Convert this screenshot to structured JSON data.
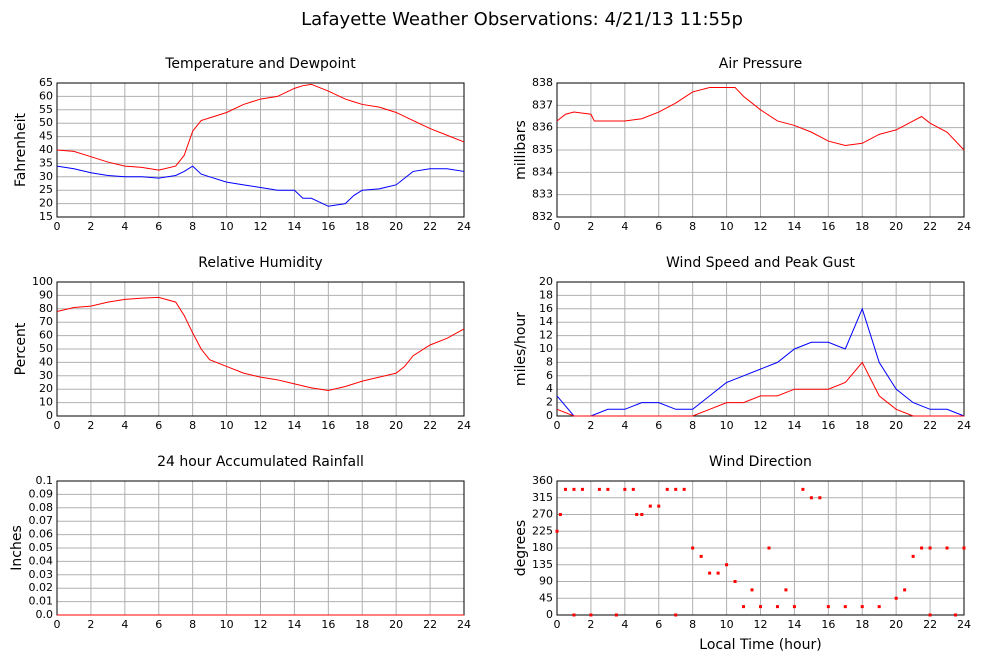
{
  "title": "Lafayette Weather Observations: 4/21/13 11:55p",
  "chart_data": [
    {
      "type": "line",
      "title": "Temperature and Dewpoint",
      "ylabel": "Fahrenheit",
      "x": [
        0,
        1,
        2,
        3,
        4,
        5,
        6,
        7,
        7.5,
        8,
        8.5,
        9,
        10,
        11,
        12,
        13,
        14,
        14.5,
        15,
        16,
        17,
        17.5,
        18,
        19,
        20,
        21,
        22,
        23,
        24
      ],
      "series": [
        {
          "color": "#ff0000",
          "values": [
            40,
            39.5,
            37.5,
            35.5,
            34,
            33.5,
            32.5,
            34,
            38,
            47,
            51,
            52,
            54,
            57,
            59,
            60,
            63,
            64,
            64.5,
            62,
            59,
            58,
            57,
            56,
            54,
            51,
            48,
            45.5,
            43
          ]
        },
        {
          "color": "#0000ff",
          "values": [
            34,
            33,
            31.5,
            30.5,
            30,
            30,
            29.5,
            30.5,
            32,
            34,
            31,
            30,
            28,
            27,
            26,
            25,
            25,
            22,
            22,
            19,
            20,
            23,
            25,
            25.5,
            27,
            32,
            33,
            33,
            32
          ]
        }
      ],
      "xlim": [
        0,
        24
      ],
      "xticks": [
        0,
        2,
        4,
        6,
        8,
        10,
        12,
        14,
        16,
        18,
        20,
        22,
        24
      ],
      "ylim": [
        15,
        65
      ],
      "yticks": [
        15,
        20,
        25,
        30,
        35,
        40,
        45,
        50,
        55,
        60,
        65
      ],
      "grid": true
    },
    {
      "type": "line",
      "title": "Air Pressure",
      "ylabel": "millibars",
      "x": [
        0,
        0.5,
        1,
        2,
        2.2,
        3,
        4,
        5,
        6,
        7,
        8,
        9,
        10,
        10.5,
        11,
        12,
        13,
        14,
        15,
        16,
        17,
        18,
        19,
        20,
        21,
        21.5,
        22,
        23,
        24
      ],
      "series": [
        {
          "color": "#ff0000",
          "values": [
            836.3,
            836.6,
            836.7,
            836.6,
            836.3,
            836.3,
            836.3,
            836.4,
            836.7,
            837.1,
            837.6,
            837.8,
            837.8,
            837.8,
            837.4,
            836.8,
            836.3,
            836.1,
            835.8,
            835.4,
            835.2,
            835.3,
            835.7,
            835.9,
            836.3,
            836.5,
            836.2,
            835.8,
            835
          ]
        }
      ],
      "xlim": [
        0,
        24
      ],
      "xticks": [
        0,
        2,
        4,
        6,
        8,
        10,
        12,
        14,
        16,
        18,
        20,
        22,
        24
      ],
      "ylim": [
        832,
        838
      ],
      "yticks": [
        832,
        833,
        834,
        835,
        836,
        837,
        838
      ],
      "grid": true
    },
    {
      "type": "line",
      "title": "Relative Humidity",
      "ylabel": "Percent",
      "x": [
        0,
        1,
        2,
        3,
        4,
        5,
        6,
        7,
        7.5,
        8,
        8.5,
        9,
        10,
        11,
        12,
        13,
        14,
        15,
        16,
        17,
        18,
        19,
        20,
        20.5,
        21,
        22,
        23,
        24
      ],
      "series": [
        {
          "color": "#ff0000",
          "values": [
            78,
            81,
            82,
            85,
            87,
            88,
            88.5,
            85,
            75,
            62,
            50,
            42,
            37,
            32,
            29,
            27,
            24,
            21,
            19,
            22,
            26,
            29,
            32,
            37,
            45,
            53,
            58,
            65
          ]
        }
      ],
      "xlim": [
        0,
        24
      ],
      "xticks": [
        0,
        2,
        4,
        6,
        8,
        10,
        12,
        14,
        16,
        18,
        20,
        22,
        24
      ],
      "ylim": [
        0,
        100
      ],
      "yticks": [
        0,
        10,
        20,
        30,
        40,
        50,
        60,
        70,
        80,
        90,
        100
      ],
      "grid": true
    },
    {
      "type": "line",
      "title": "Wind Speed and Peak Gust",
      "ylabel": "miles/hour",
      "x": [
        0,
        1,
        2,
        3,
        4,
        5,
        6,
        7,
        8,
        9,
        10,
        11,
        12,
        13,
        14,
        15,
        16,
        17,
        18,
        19,
        20,
        21,
        22,
        23,
        24
      ],
      "series": [
        {
          "color": "#0000ff",
          "values": [
            3,
            0,
            0,
            1,
            1,
            2,
            2,
            1,
            1,
            3,
            5,
            6,
            7,
            8,
            10,
            11,
            11,
            10,
            16,
            8,
            4,
            2,
            1,
            1,
            0
          ]
        },
        {
          "color": "#ff0000",
          "values": [
            1,
            0,
            0,
            0,
            0,
            0,
            0,
            0,
            0,
            1,
            2,
            2,
            3,
            3,
            4,
            4,
            4,
            5,
            8,
            3,
            1,
            0,
            0,
            0,
            0
          ]
        }
      ],
      "xlim": [
        0,
        24
      ],
      "xticks": [
        0,
        2,
        4,
        6,
        8,
        10,
        12,
        14,
        16,
        18,
        20,
        22,
        24
      ],
      "ylim": [
        0,
        20
      ],
      "yticks": [
        0,
        2,
        4,
        6,
        8,
        10,
        12,
        14,
        16,
        18,
        20
      ],
      "grid": true
    },
    {
      "type": "line",
      "title": "24 hour Accumulated Rainfall",
      "ylabel": "Inches",
      "x": [
        0,
        24
      ],
      "series": [
        {
          "color": "#ff0000",
          "values": [
            0,
            0
          ]
        }
      ],
      "xlim": [
        0,
        24
      ],
      "xticks": [
        0,
        2,
        4,
        6,
        8,
        10,
        12,
        14,
        16,
        18,
        20,
        22,
        24
      ],
      "ylim": [
        0,
        0.1
      ],
      "yticks": [
        {
          "value": 0,
          "label": "0.0"
        },
        0.01,
        0.02,
        0.03,
        0.04,
        0.05,
        0.06,
        0.07,
        0.08,
        0.09,
        0.1
      ],
      "grid": true
    },
    {
      "type": "scatter",
      "title": "Wind Direction",
      "ylabel": "degrees",
      "xlabel": "Local Time (hour)",
      "x": [
        0,
        0.2,
        0.5,
        1,
        1,
        1.5,
        2,
        2.5,
        3,
        3.5,
        4,
        4.5,
        4.7,
        5,
        5.5,
        6,
        6.5,
        7,
        7,
        7.5,
        8,
        8.5,
        9,
        9.5,
        10,
        10.5,
        11,
        11.5,
        12,
        12.5,
        13,
        13.5,
        14,
        14.5,
        15,
        15.5,
        16,
        17,
        18,
        19,
        20,
        20.5,
        21,
        21.5,
        22,
        22,
        23,
        23.5,
        24
      ],
      "series": [
        {
          "color": "#ff0000",
          "values": [
            225,
            270,
            337.5,
            337.5,
            0,
            337.5,
            0,
            337.5,
            337.5,
            0,
            337.5,
            337.5,
            270,
            270,
            292.5,
            292.5,
            337.5,
            337.5,
            0,
            337.5,
            180,
            157.5,
            112.5,
            112.5,
            135,
            90,
            22.5,
            67.5,
            22.5,
            180,
            22.5,
            67.5,
            22.5,
            337.5,
            315,
            315,
            22.5,
            22.5,
            22.5,
            22.5,
            45,
            67.5,
            157.5,
            180,
            180,
            0,
            180,
            0,
            180
          ]
        }
      ],
      "xlim": [
        0,
        24
      ],
      "xticks": [
        0,
        2,
        4,
        6,
        8,
        10,
        12,
        14,
        16,
        18,
        20,
        22,
        24
      ],
      "ylim": [
        0,
        360
      ],
      "yticks": [
        0,
        45,
        90,
        135,
        180,
        225,
        270,
        315,
        360
      ],
      "grid": true
    }
  ]
}
